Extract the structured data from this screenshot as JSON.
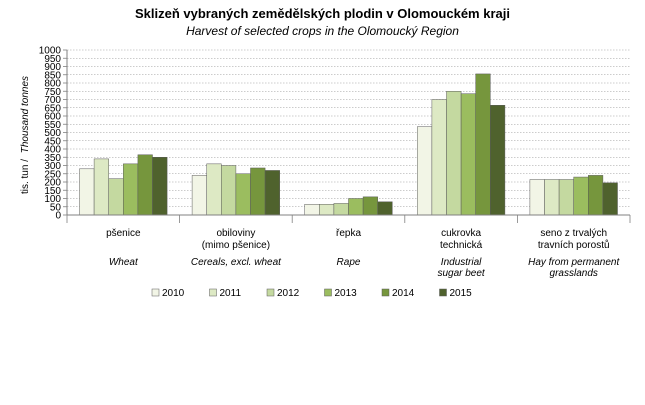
{
  "chart_data": {
    "type": "bar",
    "title": "Sklizeň vybraných  zemědělských  plodin v Olomouckém  kraji",
    "subtitle": "Harvest of selected crops in the Olomoucký Region",
    "ylabel_cz": "tis. tun /",
    "ylabel_en": "Thousand tonnes",
    "ylim": [
      0,
      1000
    ],
    "yticks": [
      "0",
      "50",
      "100",
      "150",
      "200",
      "250",
      "300",
      "350",
      "400",
      "450",
      "500",
      "550",
      "600",
      "650",
      "700",
      "750",
      "800",
      "850",
      "900",
      "950",
      "1000"
    ],
    "categories": [
      {
        "cz": [
          "pšenice"
        ],
        "en": [
          "Wheat"
        ]
      },
      {
        "cz": [
          "obiloviny",
          "(mimo pšenice)"
        ],
        "en": [
          "Cereals, excl. wheat"
        ]
      },
      {
        "cz": [
          "řepka"
        ],
        "en": [
          "Rape"
        ]
      },
      {
        "cz": [
          "cukrovka",
          "technická"
        ],
        "en": [
          "Industrial",
          "sugar beet"
        ]
      },
      {
        "cz": [
          "seno z trvalých",
          "travních porostů"
        ],
        "en": [
          "Hay from permanent",
          "grasslands"
        ]
      }
    ],
    "series": [
      {
        "name": "2010",
        "color": "#f2f5e6",
        "values": [
          280,
          240,
          65,
          535,
          215
        ]
      },
      {
        "name": "2011",
        "color": "#dde9c4",
        "values": [
          340,
          310,
          65,
          700,
          215
        ]
      },
      {
        "name": "2012",
        "color": "#c4d9a0",
        "values": [
          220,
          300,
          70,
          750,
          215
        ]
      },
      {
        "name": "2013",
        "color": "#9bbd5f",
        "values": [
          310,
          250,
          100,
          735,
          230
        ]
      },
      {
        "name": "2014",
        "color": "#76963d",
        "values": [
          365,
          285,
          110,
          855,
          240
        ]
      },
      {
        "name": "2015",
        "color": "#4f622d",
        "values": [
          350,
          270,
          80,
          665,
          195
        ]
      }
    ],
    "grid": true,
    "legend_position": "bottom"
  }
}
